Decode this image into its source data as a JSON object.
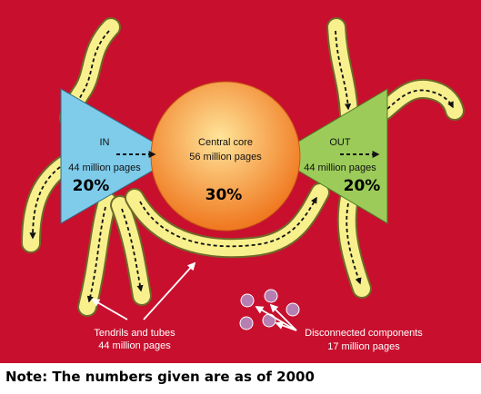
{
  "colors": {
    "background": "#C8102E",
    "tendril_fill": "#F8F08C",
    "tendril_outline": "#6E6A2A",
    "in_fill": "#7ECBEA",
    "out_fill": "#9CCB5A",
    "core_center": "#FFE59A",
    "core_edge": "#F07A22",
    "disconnected": "#B77EB2"
  },
  "nodes": {
    "in": {
      "title": "IN",
      "size": "44 million pages",
      "percent": "20%"
    },
    "core": {
      "title": "Central core",
      "size": "56 million pages",
      "percent": "30%"
    },
    "out": {
      "title": "OUT",
      "size": "44 million pages",
      "percent": "20%"
    }
  },
  "labels": {
    "tendrils_title": "Tendrils and tubes",
    "tendrils_size": "44 million pages",
    "disconnected_title": "Disconnected components",
    "disconnected_size": "17 million pages"
  },
  "note": "Note: The numbers given are as of 2000"
}
